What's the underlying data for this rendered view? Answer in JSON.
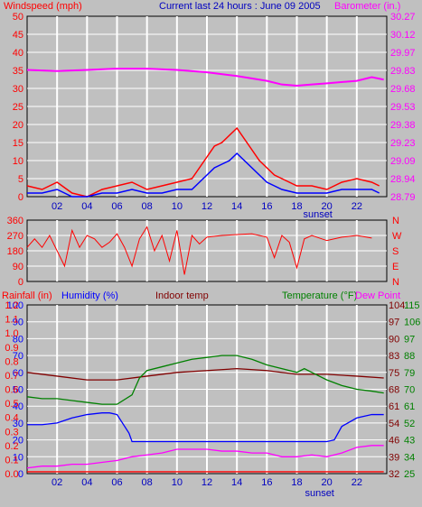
{
  "header": {
    "left_label": "Windspeed (mph)",
    "title": "Current last 24 hours : June 09 2005",
    "right_label": "Barometer (in.)"
  },
  "colors": {
    "background": "#c0c0c0",
    "grid": "#ffffff",
    "red": "#ff0000",
    "blue": "#0000ff",
    "magenta": "#ff00ff",
    "green": "#008000",
    "darkred": "#800000",
    "dark_green": "#008000",
    "navy": "#0000c0"
  },
  "chart_data": [
    {
      "type": "line",
      "name": "wind-barometer",
      "x_ticks": [
        "02",
        "04",
        "06",
        "08",
        "10",
        "12",
        "14",
        "16",
        "18",
        "20",
        "22"
      ],
      "x_extra_label": "sunset",
      "xlim": [
        0,
        24
      ],
      "left_axis": {
        "label": "Windspeed (mph)",
        "ticks": [
          "50",
          "45",
          "40",
          "35",
          "30",
          "25",
          "20",
          "15",
          "10",
          "5",
          "0"
        ],
        "ylim": [
          0,
          50
        ]
      },
      "right_axis": {
        "label": "Barometer (in.)",
        "ticks": [
          "30.27",
          "30.12",
          "29.97",
          "29.83",
          "29.68",
          "29.53",
          "29.38",
          "29.23",
          "29.09",
          "28.94",
          "28.79"
        ],
        "ylim": [
          28.79,
          30.27
        ]
      },
      "series": [
        {
          "key": "wind_gust",
          "color": "#ff0000",
          "x": [
            0,
            1,
            2,
            3,
            4,
            5,
            6,
            7,
            8,
            9,
            10,
            11,
            11.5,
            12,
            12.5,
            13,
            13.5,
            14,
            14.5,
            15,
            15.5,
            16,
            16.5,
            17,
            18,
            19,
            20,
            21,
            22,
            23,
            23.5
          ],
          "y": [
            3,
            2,
            4,
            1,
            0,
            2,
            3,
            4,
            2,
            3,
            4,
            5,
            8,
            11,
            14,
            15,
            17,
            19,
            16,
            13,
            10,
            8,
            6,
            5,
            3,
            3,
            2,
            4,
            5,
            4,
            3
          ]
        },
        {
          "key": "wind_avg",
          "color": "#0000ff",
          "x": [
            0,
            1,
            2,
            3,
            4,
            5,
            6,
            7,
            8,
            9,
            10,
            11,
            11.5,
            12,
            12.5,
            13,
            13.5,
            14,
            14.5,
            15,
            15.5,
            16,
            16.5,
            17,
            18,
            19,
            20,
            21,
            22,
            23,
            23.5
          ],
          "y": [
            1,
            1,
            2,
            0,
            0,
            1,
            1,
            2,
            1,
            1,
            2,
            2,
            4,
            6,
            8,
            9,
            10,
            12,
            10,
            8,
            6,
            4,
            3,
            2,
            1,
            1,
            1,
            2,
            2,
            2,
            1
          ]
        },
        {
          "key": "barometer",
          "color": "#ff00ff",
          "x": [
            0,
            2,
            4,
            6,
            8,
            10,
            12,
            14,
            16,
            17,
            18,
            19,
            20,
            22,
            23,
            23.8
          ],
          "y": [
            29.83,
            29.82,
            29.83,
            29.84,
            29.84,
            29.83,
            29.81,
            29.78,
            29.74,
            29.71,
            29.7,
            29.71,
            29.72,
            29.74,
            29.77,
            29.75
          ]
        }
      ]
    },
    {
      "type": "line",
      "name": "wind-direction",
      "x_ticks": [
        "02",
        "04",
        "06",
        "08",
        "10",
        "12",
        "14",
        "16",
        "18",
        "20",
        "22"
      ],
      "xlim": [
        0,
        24
      ],
      "left_axis": {
        "ticks": [
          "360",
          "270",
          "180",
          "90",
          "0"
        ],
        "ylim": [
          0,
          360
        ]
      },
      "right_axis": {
        "ticks": [
          "N",
          "W",
          "S",
          "E",
          "N"
        ]
      },
      "series": [
        {
          "key": "direction",
          "color": "#ff0000",
          "x": [
            0,
            0.5,
            1,
            1.5,
            2,
            2.5,
            3,
            3.5,
            4,
            4.5,
            5,
            5.5,
            6,
            6.5,
            7,
            7.5,
            8,
            8.5,
            9,
            9.5,
            10,
            10.5,
            11,
            11.5,
            12,
            13,
            14,
            15,
            16,
            16.5,
            17,
            17.5,
            18,
            18.5,
            19,
            20,
            21,
            22,
            23
          ],
          "y": [
            200,
            250,
            200,
            270,
            180,
            90,
            300,
            200,
            270,
            250,
            200,
            230,
            280,
            200,
            90,
            250,
            320,
            180,
            270,
            120,
            300,
            40,
            270,
            220,
            260,
            270,
            275,
            280,
            260,
            140,
            270,
            230,
            80,
            250,
            270,
            240,
            260,
            270,
            255
          ]
        }
      ]
    },
    {
      "type": "line",
      "name": "rain-humidity-temperature",
      "header_labels": {
        "rain": "Rainfall (in)",
        "humidity": "Humidity (%)",
        "indoor": "Indoor temp",
        "temperature": "Temperature (°F)",
        "dew": "Dew Point"
      },
      "x_ticks": [
        "02",
        "04",
        "06",
        "08",
        "10",
        "12",
        "14",
        "16",
        "18",
        "20",
        "22"
      ],
      "x_extra_label": "sunset",
      "xlim": [
        0,
        24
      ],
      "rain_ticks": [
        "1.2",
        "1.1",
        "1.0",
        "0.9",
        "0.8",
        "0.7",
        "0.6",
        "0.5",
        "0.4",
        "0.3",
        "0.2",
        "0.1",
        "0.0"
      ],
      "humidity_ticks": [
        "100",
        "90",
        "80",
        "70",
        "60",
        "50",
        "40",
        "30",
        "20",
        "10",
        "0"
      ],
      "indoor_ticks": [
        "104",
        "97",
        "90",
        "83",
        "75",
        "68",
        "61",
        "54",
        "46",
        "39",
        "32"
      ],
      "temp_ticks": [
        "115",
        "106",
        "97",
        "88",
        "79",
        "70",
        "61",
        "52",
        "43",
        "34",
        "25"
      ],
      "ylim_temp": [
        25,
        115
      ],
      "series": [
        {
          "key": "indoor_temp",
          "color": "#800000",
          "x": [
            0,
            2,
            4,
            6,
            8,
            10,
            12,
            14,
            16,
            18,
            19,
            20,
            22,
            23.8
          ],
          "y": [
            79,
            77,
            75,
            75,
            77,
            79,
            80,
            81,
            80,
            78,
            78,
            78,
            77,
            76
          ]
        },
        {
          "key": "temperature",
          "color": "#008000",
          "x": [
            0,
            1,
            2,
            3,
            4,
            5,
            6,
            7,
            7.5,
            8,
            9,
            10,
            11,
            12,
            13,
            14,
            15,
            16,
            17,
            18,
            18.5,
            19,
            20,
            21,
            22,
            23,
            23.8
          ],
          "y": [
            66,
            65,
            65,
            64,
            63,
            62,
            62,
            67,
            76,
            80,
            82,
            84,
            86,
            87,
            88,
            88,
            86,
            83,
            81,
            79,
            81,
            79,
            75,
            72,
            70,
            69,
            68
          ]
        },
        {
          "key": "humidity",
          "color": "#0000ff",
          "x": [
            0,
            1,
            2,
            3,
            4,
            5,
            5.5,
            6,
            6.8,
            7,
            8,
            10,
            12,
            14,
            16,
            18,
            19,
            20,
            20.5,
            21,
            22,
            23,
            23.8
          ],
          "y": [
            29,
            29,
            30,
            33,
            35,
            36,
            36,
            35,
            24,
            19,
            19,
            19,
            19,
            19,
            19,
            19,
            19,
            19,
            20,
            28,
            33,
            35,
            35
          ]
        },
        {
          "key": "dew_point",
          "color": "#ff00ff",
          "x": [
            0,
            1,
            2,
            3,
            4,
            5,
            6,
            7,
            8,
            9,
            10,
            11,
            12,
            13,
            14,
            15,
            16,
            17,
            18,
            19,
            20,
            21,
            22,
            23,
            23.8
          ],
          "y": [
            28,
            29,
            29,
            30,
            30,
            31,
            32,
            34,
            35,
            36,
            38,
            38,
            38,
            37,
            37,
            36,
            36,
            34,
            34,
            35,
            34,
            36,
            39,
            40,
            40
          ]
        },
        {
          "key": "rainfall",
          "color": "#ff0000",
          "x": [
            0,
            23.8
          ],
          "y": [
            26,
            26
          ]
        }
      ]
    }
  ]
}
